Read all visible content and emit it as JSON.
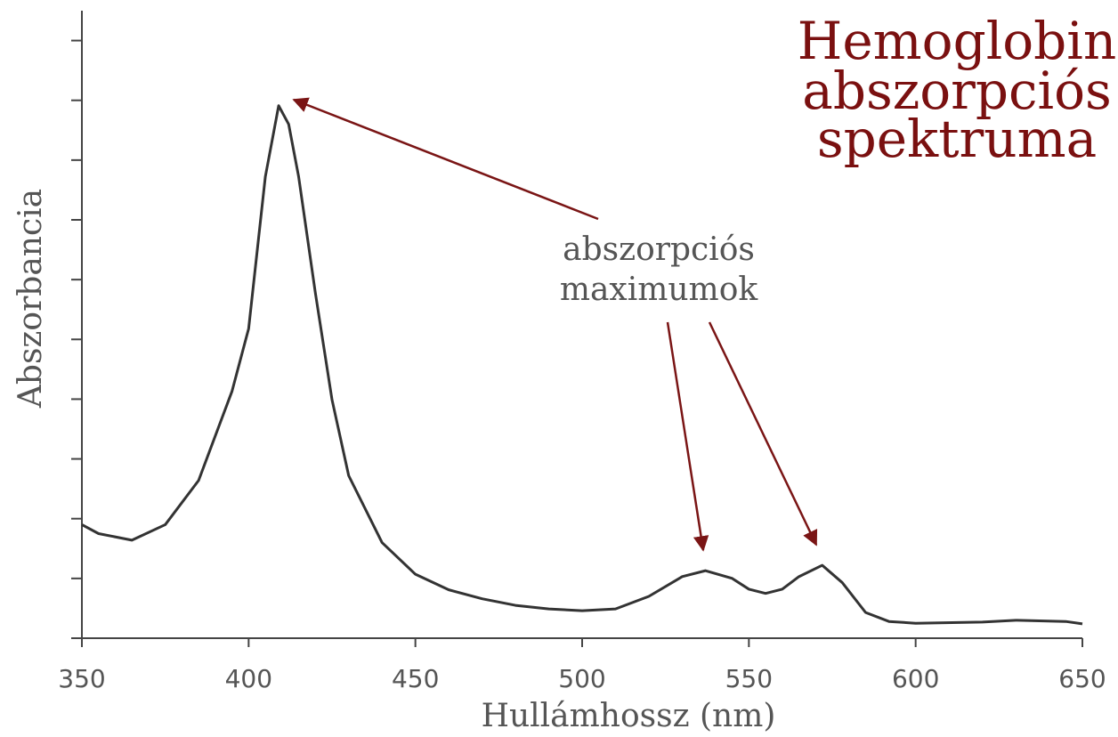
{
  "chart_data": {
    "type": "line",
    "title": [
      "Hemoglobin",
      "abszorpciós",
      "spektruma"
    ],
    "annotation": [
      "abszorpciós",
      "maximumok"
    ],
    "x_label": "Hullámhossz (nm)",
    "y_label": "Abszorbancia",
    "x": [
      350,
      355,
      365,
      375,
      385,
      395,
      400,
      405,
      409,
      412,
      415,
      420,
      425,
      430,
      440,
      450,
      460,
      470,
      480,
      490,
      500,
      510,
      520,
      530,
      537,
      545,
      550,
      555,
      560,
      565,
      572,
      578,
      585,
      592,
      600,
      620,
      630,
      645,
      650
    ],
    "series": [
      {
        "name": "Hemoglobin",
        "color": "#333333",
        "values": [
          1.9,
          1.75,
          1.64,
          1.9,
          2.64,
          4.13,
          5.18,
          7.72,
          8.91,
          8.6,
          7.72,
          5.78,
          3.99,
          2.72,
          1.6,
          1.07,
          0.81,
          0.66,
          0.55,
          0.49,
          0.46,
          0.49,
          0.7,
          1.03,
          1.13,
          1.0,
          0.82,
          0.75,
          0.82,
          1.03,
          1.22,
          0.93,
          0.43,
          0.28,
          0.25,
          0.27,
          0.3,
          0.28,
          0.24
        ]
      }
    ],
    "xlim": [
      350,
      650
    ],
    "xticks": [
      350,
      400,
      450,
      500,
      550,
      600,
      650
    ],
    "ylim": [
      0,
      10.5
    ],
    "yticks": [
      0,
      1,
      2,
      3,
      4,
      5,
      6,
      7,
      8,
      9,
      10
    ],
    "grid": false
  }
}
